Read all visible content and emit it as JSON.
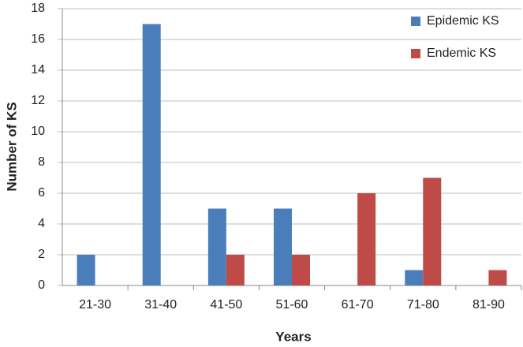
{
  "chart_data": {
    "type": "bar",
    "categories": [
      "21-30",
      "31-40",
      "41-50",
      "51-60",
      "61-70",
      "71-80",
      "81-90"
    ],
    "series": [
      {
        "name": "Epidemic KS",
        "color": "#4a7ebb",
        "values": [
          2,
          17,
          5,
          5,
          0,
          1,
          0
        ]
      },
      {
        "name": "Endemic KS",
        "color": "#be4b48",
        "values": [
          0,
          0,
          2,
          2,
          6,
          7,
          1
        ]
      }
    ],
    "x_label": "Years",
    "y_label": "Number of KS",
    "ylim": [
      0,
      18
    ],
    "yticks": [
      0,
      2,
      4,
      6,
      8,
      10,
      12,
      14,
      16,
      18
    ],
    "grid": true,
    "legend": "top-right"
  }
}
